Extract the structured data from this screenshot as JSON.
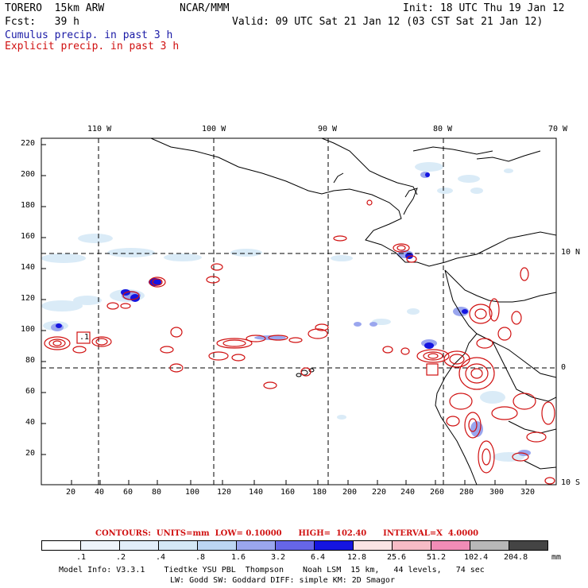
{
  "header": {
    "model": "TORERO  15km ARW",
    "org": "NCAR/MMM",
    "init": "Init: 18 UTC Thu 19 Jan 12",
    "fcst": "Fcst:   39 h",
    "valid": "Valid: 09 UTC Sat 21 Jan 12 (03 CST Sat 21 Jan 12)",
    "line_cumulus": "Cumulus precip. in past 3 h",
    "line_explicit": "Explicit precip. in past 3 h"
  },
  "colors": {
    "cumulus_text": "#1a1aa6",
    "explicit_text": "#d01010",
    "grid": "#000000"
  },
  "axes": {
    "top_lon": [
      "110 W",
      "100 W",
      "90 W",
      "80 W",
      "70 W"
    ],
    "right_lat": [
      "10 N",
      "0",
      "10 S"
    ],
    "left_y": [
      "220",
      "200",
      "180",
      "160",
      "140",
      "120",
      "100",
      "80",
      "60",
      "40",
      "20"
    ],
    "bottom_x": [
      "20",
      "40",
      "60",
      "80",
      "100",
      "120",
      "140",
      "160",
      "180",
      "200",
      "220",
      "240",
      "260",
      "280",
      "300",
      "320"
    ]
  },
  "markers": {
    "low_label": ".1"
  },
  "contours": {
    "text": "CONTOURS:  UNITS=mm  LOW= 0.10000      HIGH=  102.40      INTERVAL=X  4.0000"
  },
  "colorbar": {
    "colors": [
      "#ffffff",
      "#eef4fb",
      "#e2eefa",
      "#d4e8f6",
      "#bcd6f3",
      "#9aa6ee",
      "#6666e8",
      "#1515e0",
      "#fbe4e4",
      "#f7bcc6",
      "#f28cb7",
      "#b8b8b8",
      "#444444",
      "#d6a8f4"
    ],
    "labels": [
      ".1",
      ".2",
      ".4",
      ".8",
      "1.6",
      "3.2",
      "6.4",
      "12.8",
      "25.6",
      "51.2",
      "102.4",
      "204.8"
    ],
    "unit": "mm"
  },
  "model_info": {
    "line1": "Model Info: V3.3.1    Tiedtke YSU PBL  Thompson    Noah LSM  15 km,   44 levels,   74 sec",
    "line2": "LW: Godd SW: Goddard DIFF: simple KM: 2D Smagor"
  }
}
